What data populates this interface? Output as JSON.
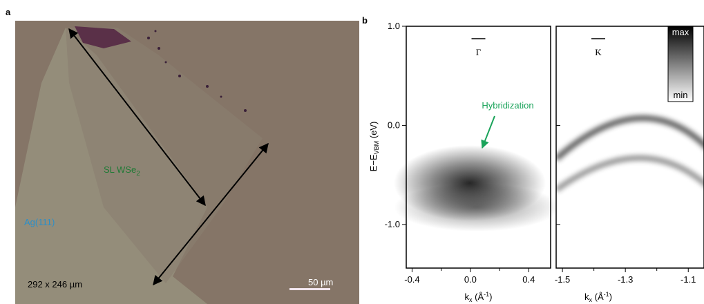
{
  "panel_a": {
    "label": "a",
    "film_label": {
      "main": "SL WSe",
      "sub": "2"
    },
    "substrate_label": "Ag(111)",
    "size_label": "292 x 246 µm",
    "scale_bar": "50 µm"
  },
  "panel_b": {
    "label": "b",
    "y_label": {
      "main": "E−E",
      "sub": "VBM",
      "unit": " (eV)"
    },
    "ylim": [
      -1.44,
      1.0
    ],
    "yticks": [
      {
        "value": 1,
        "label": "1.0"
      },
      {
        "value": 0,
        "label": "0.0"
      },
      {
        "value": -1,
        "label": "-1.0"
      }
    ],
    "plots": [
      {
        "title": "Γ",
        "xlim": [
          -0.44,
          0.55
        ],
        "xticks": [
          -0.4,
          {
            "value": 0,
            "label": "0.0"
          },
          0.4
        ],
        "minor_xticks": [
          -0.2,
          0.2
        ],
        "x_label": {
          "main": "k",
          "sub": "x",
          "unit": " (Å",
          "sup": "-1",
          "close": ")"
        },
        "annotation": "Hybridization"
      },
      {
        "title": "K",
        "xlim": [
          -1.52,
          -1.05
        ],
        "xticks": [
          -1.5,
          -1.3,
          -1.1
        ],
        "minor_xticks": [
          -1.4,
          -1.2
        ],
        "x_label": {
          "main": "k",
          "sub": "x",
          "unit": " (Å",
          "sup": "-1",
          "close": ")"
        }
      }
    ],
    "colorbar": {
      "max": "max",
      "min": "min"
    }
  }
}
